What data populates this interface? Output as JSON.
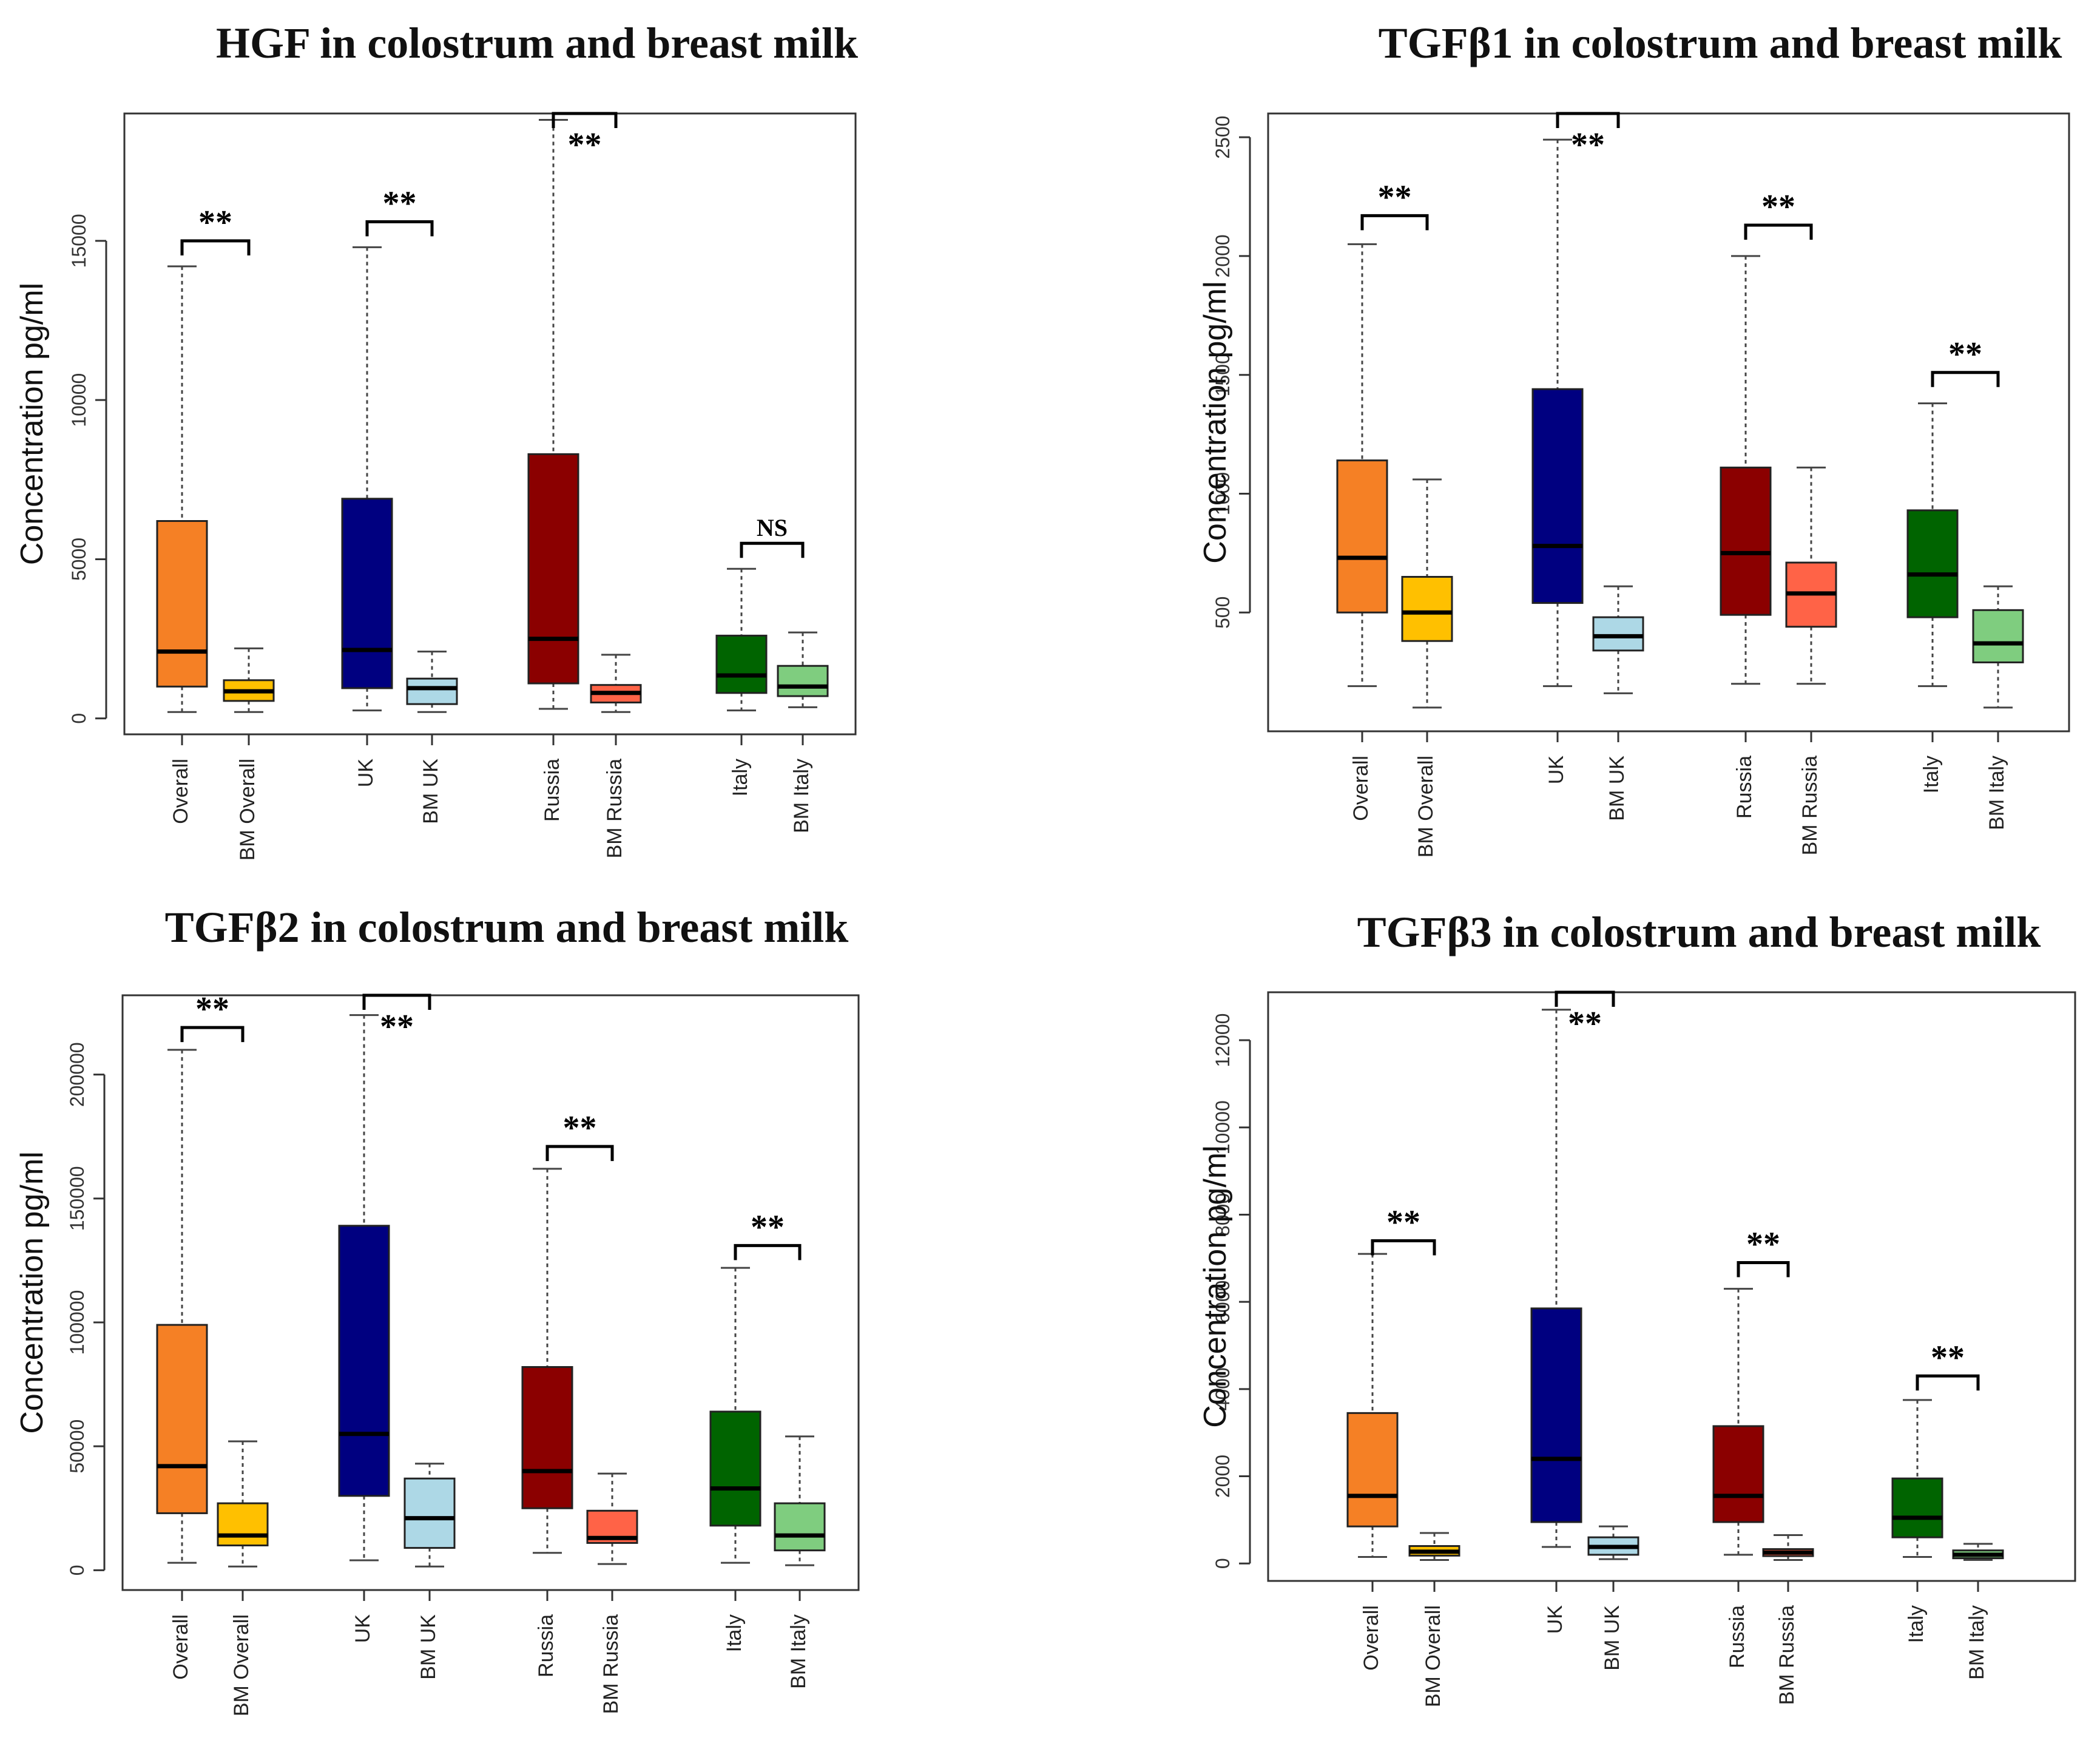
{
  "chart_data": [
    {
      "type": "box",
      "title": "HGF in colostrum and breast milk",
      "ylabel": "Concentration pg/ml",
      "xlabel": "",
      "ylim": [
        -500,
        19000
      ],
      "yticks": [
        0,
        5000,
        10000,
        15000
      ],
      "categories": [
        "Overall",
        "BM Overall",
        "UK",
        "BM UK",
        "Russia",
        "BM Russia",
        "Italy",
        "BM Italy"
      ],
      "series": [
        {
          "name": "Overall",
          "color": "#F58025",
          "min": 200,
          "q1": 1000,
          "median": 2100,
          "q3": 6200,
          "max": 14200
        },
        {
          "name": "BM Overall",
          "color": "#FFC000",
          "min": 200,
          "q1": 550,
          "median": 850,
          "q3": 1200,
          "max": 2200
        },
        {
          "name": "UK",
          "color": "#000080",
          "min": 250,
          "q1": 950,
          "median": 2150,
          "q3": 6900,
          "max": 14800
        },
        {
          "name": "BM UK",
          "color": "#ADD8E6",
          "min": 200,
          "q1": 450,
          "median": 950,
          "q3": 1250,
          "max": 2100
        },
        {
          "name": "Russia",
          "color": "#8B0000",
          "min": 300,
          "q1": 1100,
          "median": 2500,
          "q3": 8300,
          "max": 18800
        },
        {
          "name": "BM Russia",
          "color": "#FF6347",
          "min": 200,
          "q1": 500,
          "median": 800,
          "q3": 1050,
          "max": 2000
        },
        {
          "name": "Italy",
          "color": "#006400",
          "min": 250,
          "q1": 800,
          "median": 1350,
          "q3": 2600,
          "max": 4700
        },
        {
          "name": "BM Italy",
          "color": "#7FCD7F",
          "min": 350,
          "q1": 700,
          "median": 1000,
          "q3": 1650,
          "max": 2700
        }
      ],
      "annotations": [
        {
          "pair": [
            0,
            1
          ],
          "at": 15000,
          "label": "**",
          "label_pos": "above"
        },
        {
          "pair": [
            2,
            3
          ],
          "at": 15600,
          "label": "**",
          "label_pos": "above"
        },
        {
          "pair": [
            4,
            5
          ],
          "at": 19000,
          "label": "**",
          "label_pos": "below"
        },
        {
          "pair": [
            6,
            7
          ],
          "at": 5500,
          "label": "NS",
          "label_pos": "above"
        }
      ]
    },
    {
      "type": "box",
      "title": "TGFβ1 in colostrum and breast milk",
      "ylabel": "Concentration pg/ml",
      "xlabel": "",
      "ylim": [
        0,
        2600
      ],
      "yticks": [
        500,
        1000,
        1500,
        2000,
        2500
      ],
      "categories": [
        "Overall",
        "BM Overall",
        "UK",
        "BM UK",
        "Russia",
        "BM Russia",
        "Italy",
        "BM Italy"
      ],
      "series": [
        {
          "name": "Overall",
          "color": "#F58025",
          "min": 190,
          "q1": 500,
          "median": 730,
          "q3": 1140,
          "max": 2050
        },
        {
          "name": "BM Overall",
          "color": "#FFC000",
          "min": 100,
          "q1": 380,
          "median": 500,
          "q3": 650,
          "max": 1060
        },
        {
          "name": "UK",
          "color": "#000080",
          "min": 190,
          "q1": 540,
          "median": 780,
          "q3": 1440,
          "max": 2490
        },
        {
          "name": "BM UK",
          "color": "#ADD8E6",
          "min": 160,
          "q1": 340,
          "median": 400,
          "q3": 480,
          "max": 610
        },
        {
          "name": "Russia",
          "color": "#8B0000",
          "min": 200,
          "q1": 490,
          "median": 750,
          "q3": 1110,
          "max": 2000
        },
        {
          "name": "BM Russia",
          "color": "#FF6347",
          "min": 200,
          "q1": 440,
          "median": 580,
          "q3": 710,
          "max": 1110
        },
        {
          "name": "Italy",
          "color": "#006400",
          "min": 190,
          "q1": 480,
          "median": 660,
          "q3": 930,
          "max": 1380
        },
        {
          "name": "BM Italy",
          "color": "#7FCD7F",
          "min": 100,
          "q1": 290,
          "median": 370,
          "q3": 510,
          "max": 610
        }
      ],
      "annotations": [
        {
          "pair": [
            0,
            1
          ],
          "at": 2170,
          "label": "**",
          "label_pos": "above"
        },
        {
          "pair": [
            2,
            3
          ],
          "at": 2600,
          "label": "**",
          "label_pos": "below"
        },
        {
          "pair": [
            4,
            5
          ],
          "at": 2130,
          "label": "**",
          "label_pos": "above"
        },
        {
          "pair": [
            6,
            7
          ],
          "at": 1510,
          "label": "**",
          "label_pos": "above"
        }
      ]
    },
    {
      "type": "box",
      "title": "TGFβ2 in colostrum and breast milk",
      "ylabel": "Concentration pg/ml",
      "xlabel": "",
      "ylim": [
        -8000,
        232000
      ],
      "yticks": [
        0,
        50000,
        100000,
        150000,
        200000
      ],
      "categories": [
        "Overall",
        "BM Overall",
        "UK",
        "BM UK",
        "Russia",
        "BM Russia",
        "Italy",
        "BM Italy"
      ],
      "series": [
        {
          "name": "Overall",
          "color": "#F58025",
          "min": 3000,
          "q1": 23000,
          "median": 42000,
          "q3": 99000,
          "max": 210000
        },
        {
          "name": "BM Overall",
          "color": "#FFC000",
          "min": 1500,
          "q1": 10000,
          "median": 14000,
          "q3": 27000,
          "max": 52000
        },
        {
          "name": "UK",
          "color": "#000080",
          "min": 4000,
          "q1": 30000,
          "median": 55000,
          "q3": 139000,
          "max": 224000
        },
        {
          "name": "BM UK",
          "color": "#ADD8E6",
          "min": 1500,
          "q1": 9000,
          "median": 21000,
          "q3": 37000,
          "max": 43000
        },
        {
          "name": "Russia",
          "color": "#8B0000",
          "min": 7000,
          "q1": 25000,
          "median": 40000,
          "q3": 82000,
          "max": 162000
        },
        {
          "name": "BM Russia",
          "color": "#FF6347",
          "min": 2500,
          "q1": 11000,
          "median": 13000,
          "q3": 24000,
          "max": 39000
        },
        {
          "name": "Italy",
          "color": "#006400",
          "min": 3000,
          "q1": 18000,
          "median": 33000,
          "q3": 64000,
          "max": 122000
        },
        {
          "name": "BM Italy",
          "color": "#7FCD7F",
          "min": 2000,
          "q1": 8000,
          "median": 14000,
          "q3": 27000,
          "max": 54000
        }
      ],
      "annotations": [
        {
          "pair": [
            0,
            1
          ],
          "at": 219000,
          "label": "**",
          "label_pos": "above"
        },
        {
          "pair": [
            2,
            3
          ],
          "at": 232000,
          "label": "**",
          "label_pos": "below"
        },
        {
          "pair": [
            4,
            5
          ],
          "at": 171000,
          "label": "**",
          "label_pos": "above"
        },
        {
          "pair": [
            6,
            7
          ],
          "at": 131000,
          "label": "**",
          "label_pos": "above"
        }
      ]
    },
    {
      "type": "box",
      "title": "TGFβ3 in colostrum and breast milk",
      "ylabel": "Concentration pg/ml",
      "xlabel": "",
      "ylim": [
        -400,
        13100
      ],
      "yticks": [
        0,
        2000,
        4000,
        6000,
        8000,
        10000,
        12000
      ],
      "categories": [
        "Overall",
        "BM Overall",
        "UK",
        "BM UK",
        "Russia",
        "BM Russia",
        "Italy",
        "BM Italy"
      ],
      "series": [
        {
          "name": "Overall",
          "color": "#F58025",
          "min": 150,
          "q1": 850,
          "median": 1550,
          "q3": 3450,
          "max": 7100
        },
        {
          "name": "BM Overall",
          "color": "#FFC000",
          "min": 80,
          "q1": 180,
          "median": 270,
          "q3": 400,
          "max": 700
        },
        {
          "name": "UK",
          "color": "#000080",
          "min": 380,
          "q1": 950,
          "median": 2400,
          "q3": 5850,
          "max": 12700
        },
        {
          "name": "BM UK",
          "color": "#ADD8E6",
          "min": 100,
          "q1": 200,
          "median": 380,
          "q3": 600,
          "max": 850
        },
        {
          "name": "Russia",
          "color": "#8B0000",
          "min": 200,
          "q1": 950,
          "median": 1550,
          "q3": 3150,
          "max": 6300
        },
        {
          "name": "BM Russia",
          "color": "#FF6347",
          "min": 80,
          "q1": 170,
          "median": 250,
          "q3": 330,
          "max": 650
        },
        {
          "name": "Italy",
          "color": "#006400",
          "min": 150,
          "q1": 600,
          "median": 1050,
          "q3": 1950,
          "max": 3750
        },
        {
          "name": "BM Italy",
          "color": "#7FCD7F",
          "min": 80,
          "q1": 120,
          "median": 200,
          "q3": 300,
          "max": 450
        }
      ],
      "annotations": [
        {
          "pair": [
            0,
            1
          ],
          "at": 7400,
          "label": "**",
          "label_pos": "above"
        },
        {
          "pair": [
            2,
            3
          ],
          "at": 13100,
          "label": "**",
          "label_pos": "below"
        },
        {
          "pair": [
            4,
            5
          ],
          "at": 6900,
          "label": "**",
          "label_pos": "above"
        },
        {
          "pair": [
            6,
            7
          ],
          "at": 4300,
          "label": "**",
          "label_pos": "above"
        }
      ]
    }
  ]
}
